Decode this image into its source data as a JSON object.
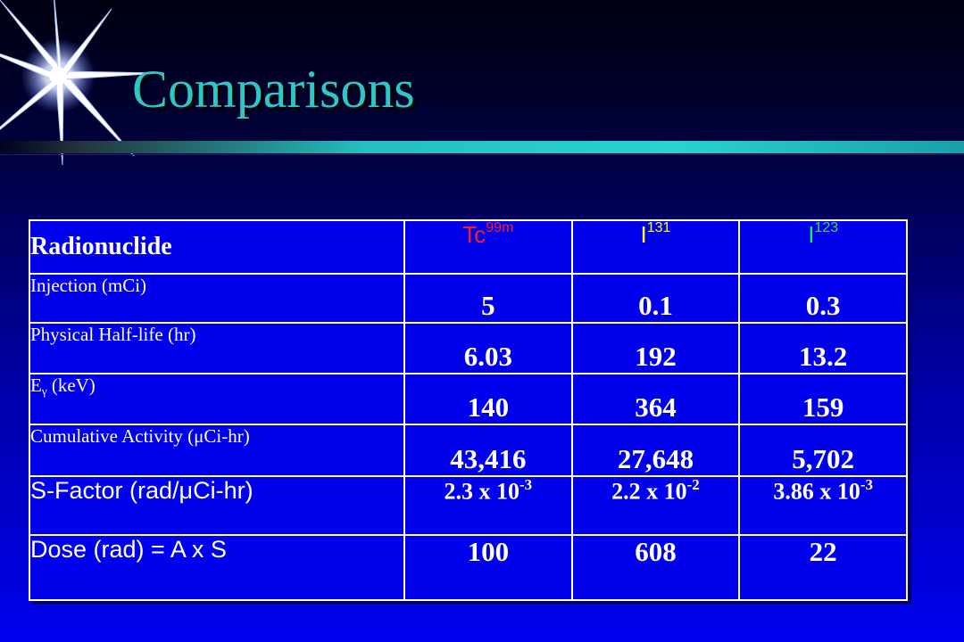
{
  "slide": {
    "title": "Comparisons"
  },
  "colors": {
    "title": "#2ec7c7",
    "table_background": "#0000ea",
    "tc_label": "#ff1e1e",
    "i131_label": "#ffff00",
    "i123_label": "#33dd55"
  },
  "table": {
    "header": {
      "label": "Radionuclide",
      "nuclides": [
        {
          "symbol": "Tc",
          "mass": "99m"
        },
        {
          "symbol": "I",
          "mass": "131"
        },
        {
          "symbol": "I",
          "mass": "123"
        }
      ]
    },
    "rows": {
      "injection": {
        "label": "Injection (mCi)",
        "values": [
          "5",
          "0.1",
          "0.3"
        ]
      },
      "half_life": {
        "label": "Physical Half-life (hr)",
        "values": [
          "6.03",
          "192",
          "13.2"
        ]
      },
      "energy": {
        "label_main": "E",
        "label_sub": "γ",
        "label_rest": " (keV)",
        "values": [
          "140",
          "364",
          "159"
        ]
      },
      "cumulative": {
        "label": "Cumulative Activity (μCi-hr)",
        "values": [
          "43,416",
          "27,648",
          "5,702"
        ]
      },
      "s_factor": {
        "label": "S-Factor (rad/μCi-hr)",
        "values": [
          {
            "base": "2.3 x 10",
            "exp": "-3"
          },
          {
            "base": "2.2 x 10",
            "exp": "-2"
          },
          {
            "base": "3.86 x 10",
            "exp": "-3"
          }
        ]
      },
      "dose": {
        "label": "Dose (rad) = A x S",
        "values": [
          "100",
          "608",
          "22"
        ]
      }
    }
  }
}
